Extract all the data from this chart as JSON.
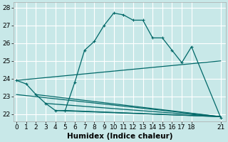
{
  "xlabel": "Humidex (Indice chaleur)",
  "background_color": "#c8e8e8",
  "grid_color": "#ffffff",
  "line_color": "#006868",
  "lines": [
    {
      "x": [
        0,
        1,
        2,
        3,
        4,
        5,
        6,
        7,
        8,
        9,
        10,
        11,
        12,
        13,
        14,
        15,
        16,
        17,
        18,
        21
      ],
      "y": [
        23.9,
        23.7,
        23.1,
        22.6,
        22.2,
        22.2,
        23.8,
        25.6,
        26.1,
        27.0,
        27.7,
        27.6,
        27.3,
        27.3,
        26.3,
        26.3,
        25.6,
        24.9,
        25.8,
        21.8
      ],
      "marker": "+",
      "lw": 0.9
    },
    {
      "x": [
        0,
        21
      ],
      "y": [
        23.9,
        25.0
      ],
      "marker": null,
      "lw": 0.9
    },
    {
      "x": [
        0,
        21
      ],
      "y": [
        23.1,
        21.85
      ],
      "marker": null,
      "lw": 0.9
    },
    {
      "x": [
        2,
        21
      ],
      "y": [
        23.1,
        21.85
      ],
      "marker": null,
      "lw": 0.9
    },
    {
      "x": [
        3,
        21
      ],
      "y": [
        22.6,
        21.85
      ],
      "marker": null,
      "lw": 0.9
    },
    {
      "x": [
        4,
        21
      ],
      "y": [
        22.2,
        21.85
      ],
      "marker": null,
      "lw": 0.9
    },
    {
      "x": [
        5,
        21
      ],
      "y": [
        22.2,
        21.85
      ],
      "marker": null,
      "lw": 0.9
    }
  ],
  "xlim": [
    -0.3,
    21.5
  ],
  "ylim": [
    21.6,
    28.3
  ],
  "xticks": [
    0,
    1,
    2,
    3,
    4,
    5,
    6,
    7,
    8,
    9,
    10,
    11,
    12,
    13,
    14,
    15,
    16,
    17,
    18,
    21
  ],
  "yticks": [
    22,
    23,
    24,
    25,
    26,
    27,
    28
  ],
  "tick_fontsize": 6.5,
  "label_fontsize": 7.5
}
